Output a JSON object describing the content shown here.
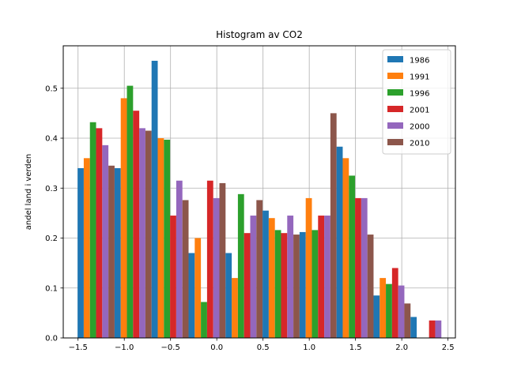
{
  "chart_data": {
    "type": "bar",
    "title": "Histogram av CO2",
    "xlabel": "",
    "ylabel": "andel land i verden",
    "xlim": [
      -1.66,
      2.58
    ],
    "ylim": [
      0.0,
      0.585
    ],
    "x_ticks": [
      "−1.5",
      "−1.0",
      "−0.5",
      "0.0",
      "0.5",
      "1.0",
      "1.5",
      "2.0",
      "2.5"
    ],
    "x_tick_values": [
      -1.5,
      -1.0,
      -0.5,
      0.0,
      0.5,
      1.0,
      1.5,
      2.0,
      2.5
    ],
    "y_ticks": [
      "0.0",
      "0.1",
      "0.2",
      "0.3",
      "0.4",
      "0.5"
    ],
    "y_tick_values": [
      0.0,
      0.1,
      0.2,
      0.3,
      0.4,
      0.5
    ],
    "grid": true,
    "legend_position": "top-right",
    "bin_centers": [
      -1.305,
      -0.905,
      -0.505,
      -0.105,
      0.295,
      0.695,
      1.095,
      1.495,
      1.895,
      2.295
    ],
    "series": [
      {
        "name": "1986",
        "color": "#1f77b4",
        "values": [
          0.34,
          0.34,
          0.555,
          0.17,
          0.17,
          0.255,
          0.212,
          0.383,
          0.085,
          0.042
        ]
      },
      {
        "name": "1991",
        "color": "#ff7f0e",
        "values": [
          0.36,
          0.48,
          0.4,
          0.2,
          0.12,
          0.24,
          0.28,
          0.36,
          0.12,
          0.0
        ]
      },
      {
        "name": "1996",
        "color": "#2ca02c",
        "values": [
          0.432,
          0.505,
          0.397,
          0.072,
          0.288,
          0.216,
          0.216,
          0.325,
          0.108,
          0.0
        ]
      },
      {
        "name": "2001",
        "color": "#d62728",
        "values": [
          0.42,
          0.455,
          0.245,
          0.315,
          0.21,
          0.21,
          0.245,
          0.28,
          0.14,
          0.035
        ]
      },
      {
        "name": "2000",
        "color": "#9467bd",
        "values": [
          0.386,
          0.42,
          0.315,
          0.28,
          0.245,
          0.245,
          0.245,
          0.28,
          0.105,
          0.035
        ]
      },
      {
        "name": "2010",
        "color": "#8c564b",
        "values": [
          0.345,
          0.415,
          0.276,
          0.31,
          0.276,
          0.207,
          0.45,
          0.207,
          0.069,
          0.0
        ]
      }
    ]
  }
}
